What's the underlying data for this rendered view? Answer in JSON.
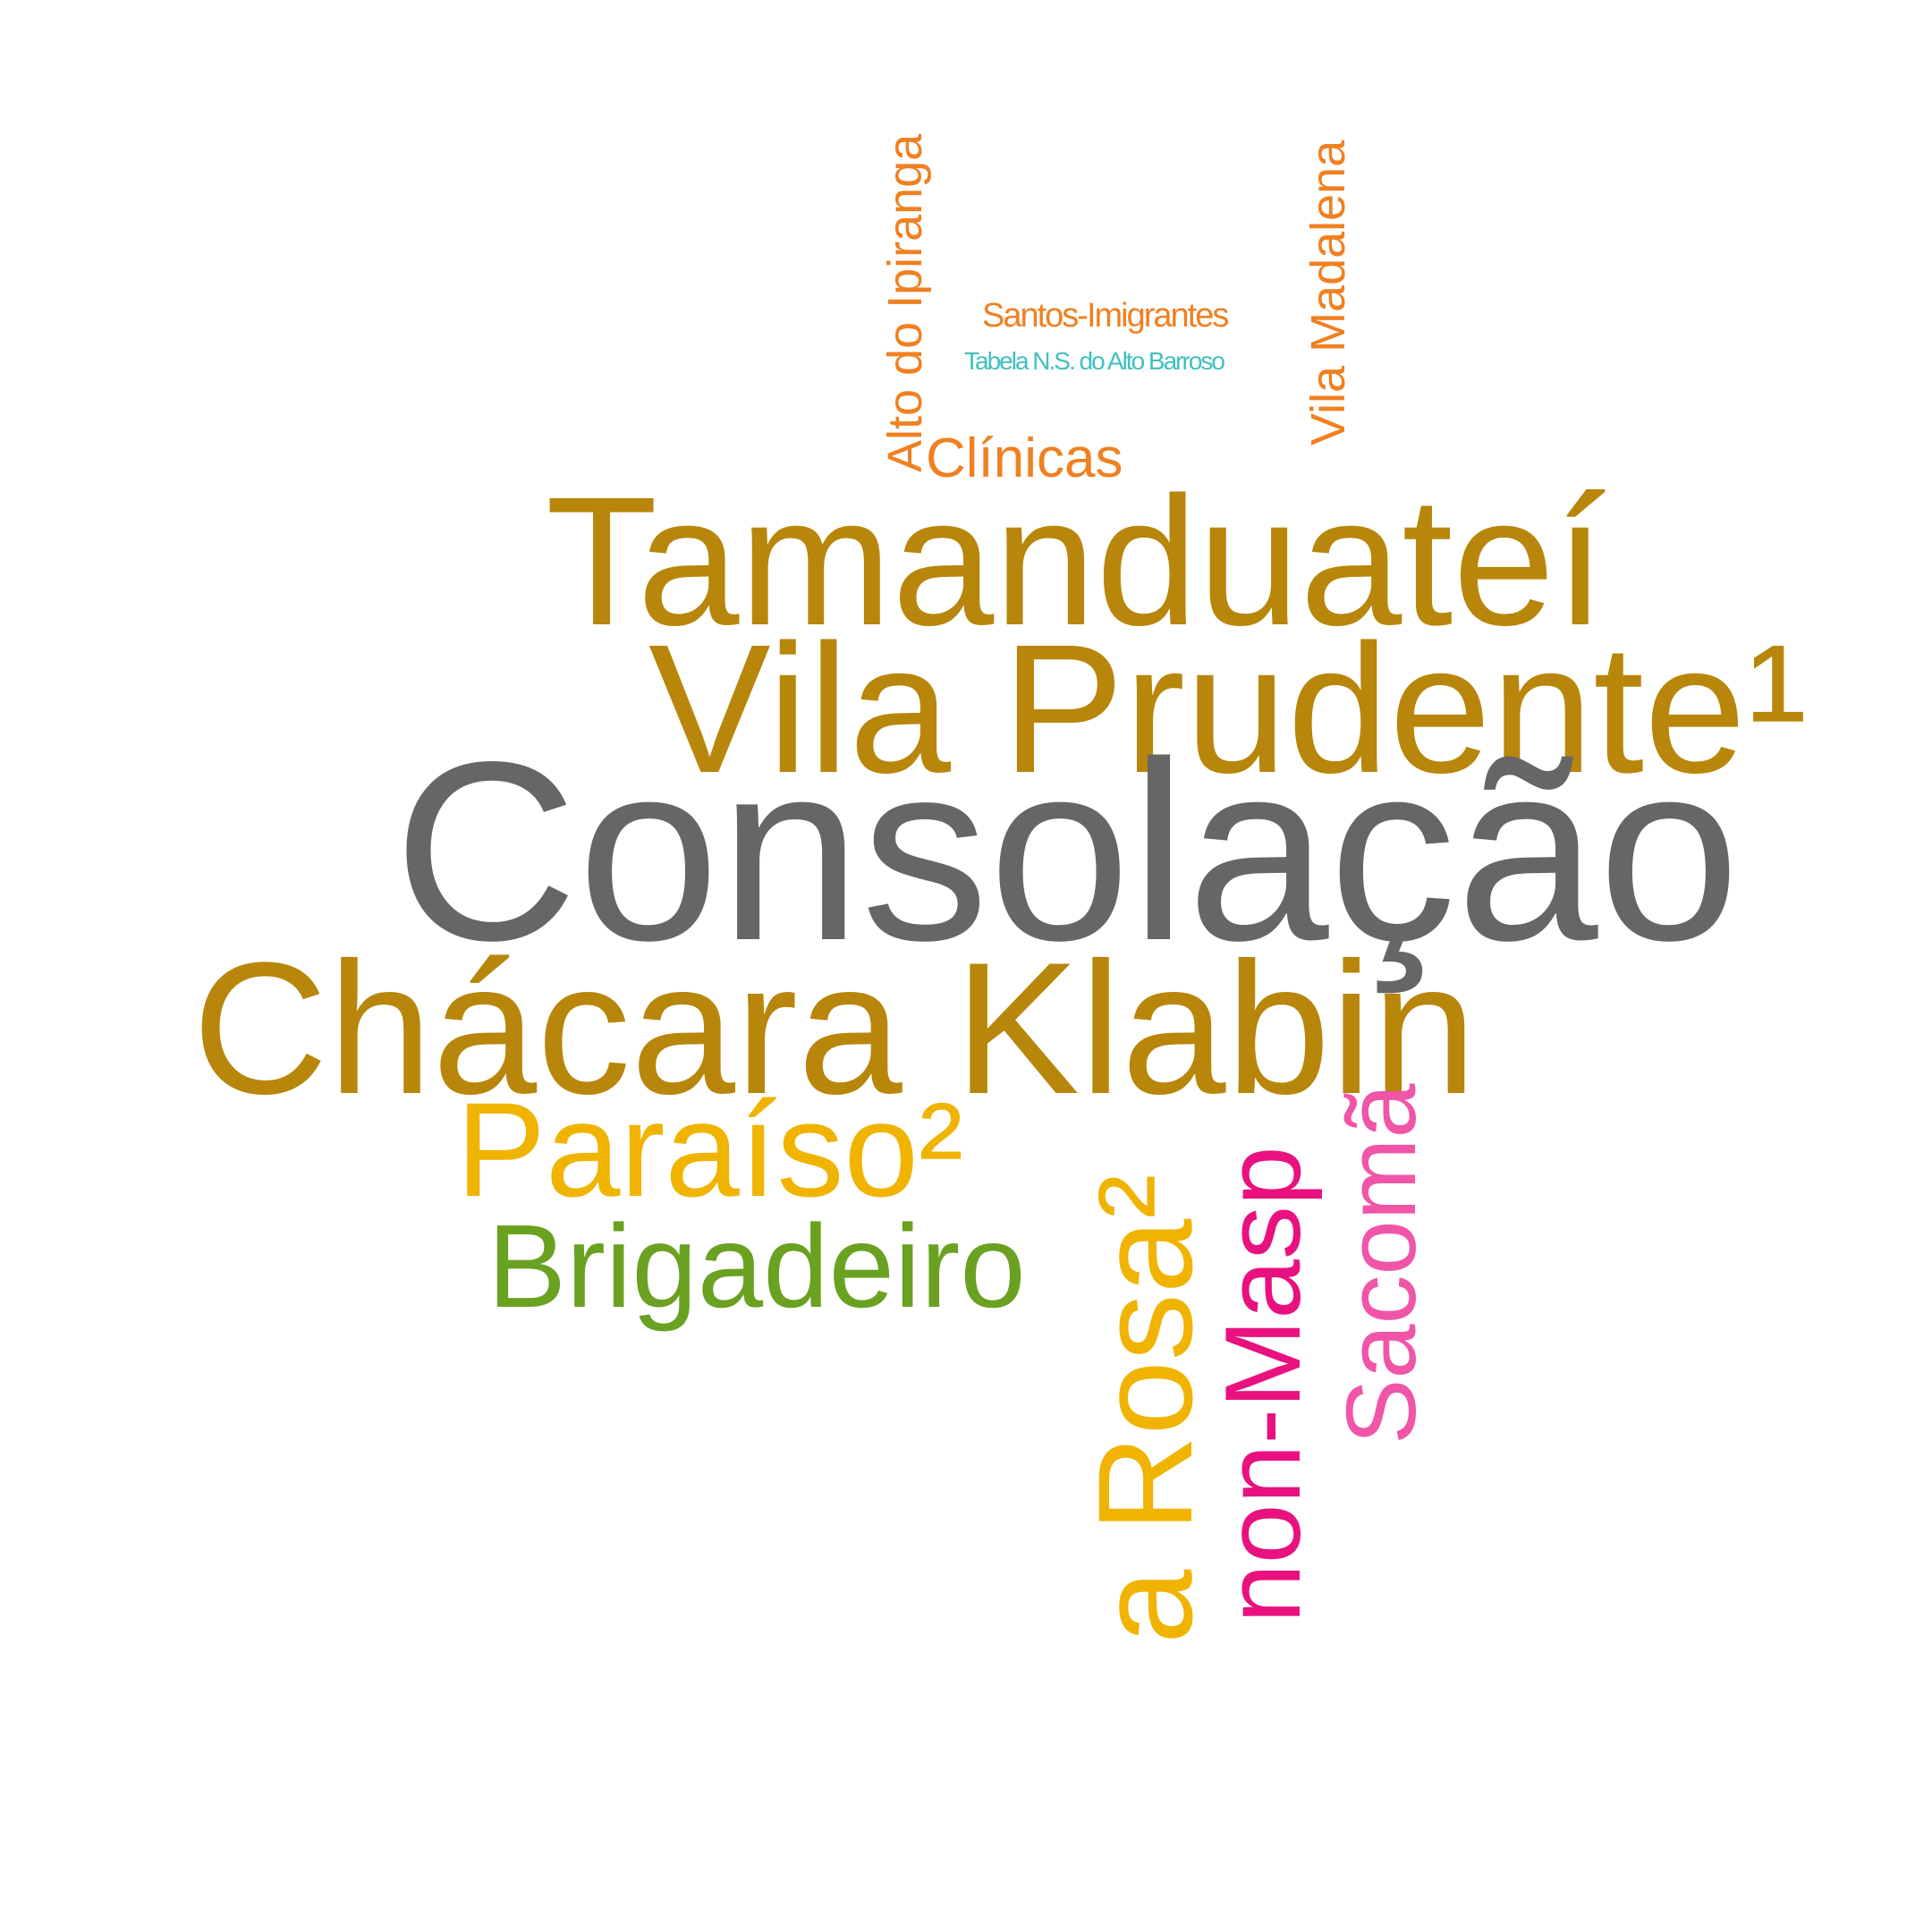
{
  "cloud": {
    "colors": {
      "gold_brown": "#b8860b",
      "gray": "#666666",
      "yellow": "#f0b400",
      "green": "#6aa121",
      "magenta": "#e8117f",
      "pink": "#f055a8",
      "orange": "#f08020",
      "cyan": "#40c0c0"
    },
    "words": {
      "tamanduatei": "Tamanduateí",
      "vila_prudente": "Vila Prudente¹",
      "consolacao": "Consolação",
      "chacara_klabin": "Chácara Klabin",
      "paraiso": "Paraíso²",
      "brigadeiro": "Brigadeiro",
      "rosa": "a Rosa²",
      "non_masp": "non-Masp",
      "sacoma": "Sacomã",
      "clinicas": "Clínicas",
      "alto_do_ipiranga": "Alto do Ipiranga",
      "vila_madalena": "Vila Madalena",
      "santos_imigrantes": "Santos-Imigrantes",
      "tabela": "Tabela N.S. do Alto Barroso"
    }
  }
}
